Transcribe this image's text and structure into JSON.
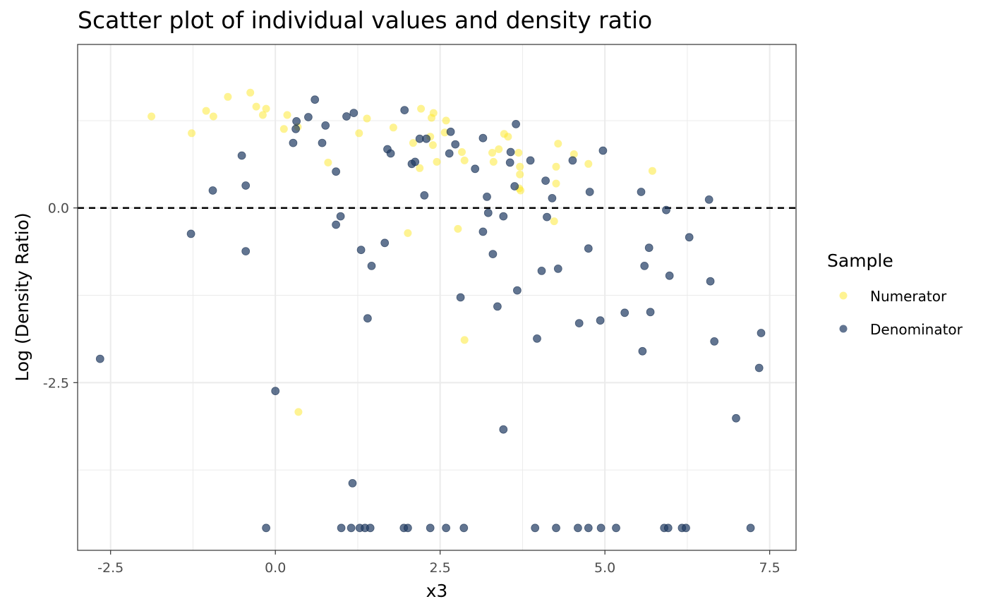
{
  "chart_data": {
    "type": "scatter",
    "title": "Scatter plot of individual values and density ratio",
    "xlabel": "x3",
    "ylabel": "Log (Density Ratio)",
    "xlim": [
      -3.0,
      7.9
    ],
    "ylim": [
      -4.9,
      2.34
    ],
    "x_ticks": [
      -2.5,
      0.0,
      2.5,
      5.0,
      7.5
    ],
    "x_tick_labels": [
      "-2.5",
      "0.0",
      "2.5",
      "5.0",
      "7.5"
    ],
    "y_ticks": [
      -2.5,
      0.0
    ],
    "y_tick_labels": [
      "-2.5",
      "0.0"
    ],
    "reference_line": {
      "y": 0.0,
      "style": "dashed",
      "color": "#000000"
    },
    "grid": true,
    "legend": {
      "title": "Sample",
      "placement": "right"
    },
    "series": [
      {
        "name": "Numerator",
        "color": "#FDE725",
        "opacity": 0.5,
        "points": [
          [
            -1.88,
            1.31
          ],
          [
            -1.27,
            1.07
          ],
          [
            -1.05,
            1.39
          ],
          [
            -0.94,
            1.31
          ],
          [
            -0.72,
            1.59
          ],
          [
            -0.38,
            1.65
          ],
          [
            -0.29,
            1.45
          ],
          [
            -0.19,
            1.33
          ],
          [
            -0.14,
            1.42
          ],
          [
            0.13,
            1.13
          ],
          [
            0.18,
            1.33
          ],
          [
            0.34,
            1.16
          ],
          [
            0.8,
            0.65
          ],
          [
            0.35,
            -2.92
          ],
          [
            1.27,
            1.07
          ],
          [
            1.39,
            1.28
          ],
          [
            1.79,
            1.15
          ],
          [
            2.01,
            -0.36
          ],
          [
            2.09,
            0.93
          ],
          [
            2.19,
            0.57
          ],
          [
            2.21,
            1.42
          ],
          [
            2.35,
            1.02
          ],
          [
            2.37,
            1.29
          ],
          [
            2.39,
            0.9
          ],
          [
            2.4,
            1.36
          ],
          [
            2.45,
            0.66
          ],
          [
            2.57,
            1.08
          ],
          [
            2.59,
            1.25
          ],
          [
            2.77,
            -0.3
          ],
          [
            2.83,
            0.8
          ],
          [
            2.87,
            0.68
          ],
          [
            2.87,
            -1.89
          ],
          [
            3.29,
            0.79
          ],
          [
            3.31,
            0.66
          ],
          [
            3.39,
            0.84
          ],
          [
            3.47,
            1.06
          ],
          [
            3.53,
            1.02
          ],
          [
            3.69,
            0.79
          ],
          [
            3.71,
            0.59
          ],
          [
            3.71,
            0.48
          ],
          [
            3.7,
            0.28
          ],
          [
            3.72,
            0.25
          ],
          [
            4.23,
            -0.19
          ],
          [
            4.26,
            0.59
          ],
          [
            4.26,
            0.35
          ],
          [
            4.29,
            0.92
          ],
          [
            4.53,
            0.77
          ],
          [
            4.75,
            0.63
          ],
          [
            5.72,
            0.53
          ]
        ]
      },
      {
        "name": "Denominator",
        "color": "#1F3A63",
        "opacity": 0.7,
        "points": [
          [
            -2.66,
            -2.16
          ],
          [
            -1.28,
            -0.37
          ],
          [
            -0.95,
            0.25
          ],
          [
            -0.51,
            0.75
          ],
          [
            -0.45,
            0.32
          ],
          [
            -0.45,
            -0.62
          ],
          [
            -0.14,
            -4.58
          ],
          [
            0.0,
            -2.62
          ],
          [
            0.27,
            0.93
          ],
          [
            0.32,
            1.24
          ],
          [
            0.31,
            1.13
          ],
          [
            0.5,
            1.3
          ],
          [
            0.6,
            1.55
          ],
          [
            0.71,
            0.93
          ],
          [
            0.76,
            1.18
          ],
          [
            0.92,
            0.52
          ],
          [
            0.92,
            -0.24
          ],
          [
            0.99,
            -0.12
          ],
          [
            1.0,
            -4.58
          ],
          [
            1.08,
            1.31
          ],
          [
            1.15,
            -4.58
          ],
          [
            1.17,
            -3.94
          ],
          [
            1.19,
            1.36
          ],
          [
            1.28,
            -4.58
          ],
          [
            1.3,
            -0.6
          ],
          [
            1.36,
            -4.58
          ],
          [
            1.4,
            -1.58
          ],
          [
            1.44,
            -4.58
          ],
          [
            1.46,
            -0.83
          ],
          [
            1.66,
            -0.5
          ],
          [
            1.7,
            0.84
          ],
          [
            1.75,
            0.78
          ],
          [
            1.96,
            1.4
          ],
          [
            1.95,
            -4.58
          ],
          [
            2.01,
            -4.58
          ],
          [
            2.07,
            0.63
          ],
          [
            2.12,
            0.66
          ],
          [
            2.19,
            0.99
          ],
          [
            2.26,
            0.18
          ],
          [
            2.29,
            0.99
          ],
          [
            2.35,
            -4.58
          ],
          [
            2.59,
            -4.58
          ],
          [
            2.64,
            0.78
          ],
          [
            2.66,
            1.09
          ],
          [
            2.73,
            0.91
          ],
          [
            2.81,
            -1.28
          ],
          [
            2.86,
            -4.58
          ],
          [
            3.03,
            0.56
          ],
          [
            3.15,
            1.0
          ],
          [
            3.15,
            -0.34
          ],
          [
            3.21,
            0.16
          ],
          [
            3.23,
            -0.07
          ],
          [
            3.3,
            -0.66
          ],
          [
            3.37,
            -1.41
          ],
          [
            3.46,
            -0.12
          ],
          [
            3.46,
            -3.17
          ],
          [
            3.56,
            0.65
          ],
          [
            3.57,
            0.8
          ],
          [
            3.63,
            0.31
          ],
          [
            3.65,
            1.2
          ],
          [
            3.67,
            -1.18
          ],
          [
            3.87,
            0.68
          ],
          [
            3.94,
            -4.58
          ],
          [
            3.97,
            -1.87
          ],
          [
            4.04,
            -0.9
          ],
          [
            4.1,
            0.39
          ],
          [
            4.12,
            -0.13
          ],
          [
            4.2,
            0.14
          ],
          [
            4.26,
            -4.58
          ],
          [
            4.29,
            -0.87
          ],
          [
            4.51,
            0.68
          ],
          [
            4.59,
            -4.58
          ],
          [
            4.61,
            -1.65
          ],
          [
            4.75,
            -4.58
          ],
          [
            4.75,
            -0.58
          ],
          [
            4.77,
            0.23
          ],
          [
            4.93,
            -1.61
          ],
          [
            4.94,
            -4.58
          ],
          [
            4.97,
            0.82
          ],
          [
            5.17,
            -4.58
          ],
          [
            5.3,
            -1.5
          ],
          [
            5.55,
            0.23
          ],
          [
            5.57,
            -2.05
          ],
          [
            5.6,
            -0.83
          ],
          [
            5.67,
            -0.57
          ],
          [
            5.69,
            -1.49
          ],
          [
            5.9,
            -4.58
          ],
          [
            5.93,
            -0.03
          ],
          [
            5.96,
            -4.58
          ],
          [
            5.98,
            -0.97
          ],
          [
            6.17,
            -4.58
          ],
          [
            6.23,
            -4.58
          ],
          [
            6.28,
            -0.42
          ],
          [
            6.58,
            0.12
          ],
          [
            6.6,
            -1.05
          ],
          [
            6.66,
            -1.91
          ],
          [
            6.99,
            -3.01
          ],
          [
            7.21,
            -4.58
          ],
          [
            7.34,
            -2.29
          ],
          [
            7.37,
            -1.79
          ]
        ]
      }
    ]
  }
}
